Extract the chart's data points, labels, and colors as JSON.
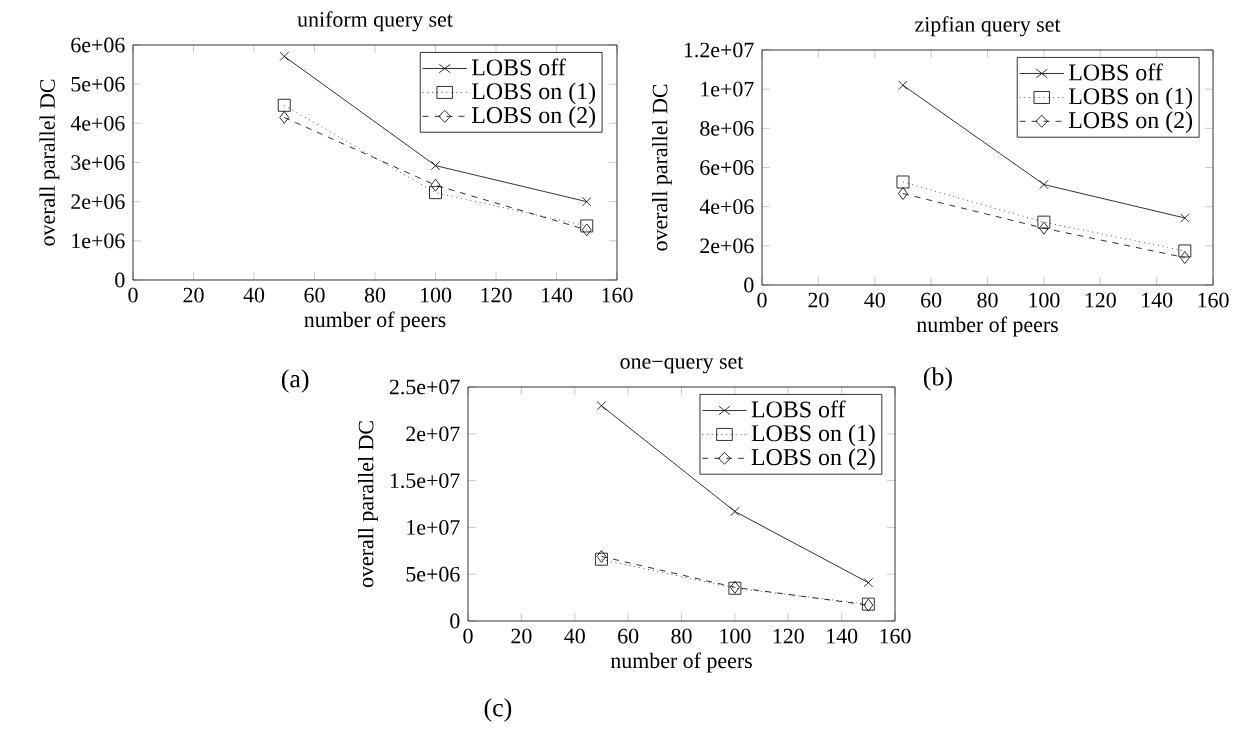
{
  "chart_data": [
    {
      "type": "line",
      "title": "uniform query set",
      "xlabel": "number of peers",
      "ylabel": "overall parallel DC",
      "annotations": [
        "(a)"
      ],
      "x": [
        50,
        100,
        150
      ],
      "xlim": [
        0,
        160
      ],
      "xticks": [
        0,
        20,
        40,
        60,
        80,
        100,
        120,
        140,
        160
      ],
      "ylim": [
        0,
        6000000
      ],
      "yticks": [
        {
          "value": 0,
          "label": "0"
        },
        {
          "value": 1000000,
          "label": "1e+06"
        },
        {
          "value": 2000000,
          "label": "2e+06"
        },
        {
          "value": 3000000,
          "label": "3e+06"
        },
        {
          "value": 4000000,
          "label": "4e+06"
        },
        {
          "value": 5000000,
          "label": "5e+06"
        },
        {
          "value": 6000000,
          "label": "6e+06"
        }
      ],
      "legend": "top right",
      "grid": false,
      "series": [
        {
          "name": "LOBS off",
          "color": "#000000",
          "marker": "cross",
          "line_style": "solid",
          "values": [
            5710000,
            2920000,
            2000000
          ]
        },
        {
          "name": "LOBS on (1)",
          "color": "#000000",
          "marker": "square",
          "line_style": "dotted",
          "values": [
            4460000,
            2230000,
            1380000
          ]
        },
        {
          "name": "LOBS on (2)",
          "color": "#000000",
          "marker": "diamond",
          "line_style": "dashed",
          "values": [
            4150000,
            2420000,
            1280000
          ]
        }
      ]
    },
    {
      "type": "line",
      "title": "zipfian query set",
      "xlabel": "number of peers",
      "ylabel": "overall parallel DC",
      "annotations": [
        "(b)"
      ],
      "x": [
        50,
        100,
        150
      ],
      "xlim": [
        0,
        160
      ],
      "xticks": [
        0,
        20,
        40,
        60,
        80,
        100,
        120,
        140,
        160
      ],
      "ylim": [
        0,
        12000000
      ],
      "yticks": [
        {
          "value": 0,
          "label": "0"
        },
        {
          "value": 2000000,
          "label": "2e+06"
        },
        {
          "value": 4000000,
          "label": "4e+06"
        },
        {
          "value": 6000000,
          "label": "6e+06"
        },
        {
          "value": 8000000,
          "label": "8e+06"
        },
        {
          "value": 10000000,
          "label": "1e+07"
        },
        {
          "value": 12000000,
          "label": "1.2e+07"
        }
      ],
      "legend": "top right",
      "grid": false,
      "series": [
        {
          "name": "LOBS off",
          "color": "#000000",
          "marker": "cross",
          "line_style": "solid",
          "values": [
            10200000,
            5130000,
            3420000
          ]
        },
        {
          "name": "LOBS on (1)",
          "color": "#000000",
          "marker": "square",
          "line_style": "dotted",
          "values": [
            5260000,
            3210000,
            1740000
          ]
        },
        {
          "name": "LOBS on (2)",
          "color": "#000000",
          "marker": "diamond",
          "line_style": "dashed",
          "values": [
            4670000,
            2900000,
            1400000
          ]
        }
      ]
    },
    {
      "type": "line",
      "title": "one−query set",
      "xlabel": "number of peers",
      "ylabel": "overall parallel DC",
      "annotations": [
        "(c)"
      ],
      "x": [
        50,
        100,
        150
      ],
      "xlim": [
        0,
        160
      ],
      "xticks": [
        0,
        20,
        40,
        60,
        80,
        100,
        120,
        140,
        160
      ],
      "ylim": [
        0,
        25000000
      ],
      "yticks": [
        {
          "value": 0,
          "label": "0"
        },
        {
          "value": 5000000,
          "label": "5e+06"
        },
        {
          "value": 10000000,
          "label": "1e+07"
        },
        {
          "value": 15000000,
          "label": "1.5e+07"
        },
        {
          "value": 20000000,
          "label": "2e+07"
        },
        {
          "value": 25000000,
          "label": "2.5e+07"
        }
      ],
      "legend": "top right",
      "grid": false,
      "series": [
        {
          "name": "LOBS off",
          "color": "#000000",
          "marker": "cross",
          "line_style": "solid",
          "values": [
            23000000,
            11700000,
            4100000
          ]
        },
        {
          "name": "LOBS on (1)",
          "color": "#000000",
          "marker": "square",
          "line_style": "dotted",
          "values": [
            6600000,
            3500000,
            1800000
          ]
        },
        {
          "name": "LOBS on (2)",
          "color": "#000000",
          "marker": "diamond",
          "line_style": "dashed",
          "values": [
            6900000,
            3600000,
            1700000
          ]
        }
      ]
    }
  ]
}
